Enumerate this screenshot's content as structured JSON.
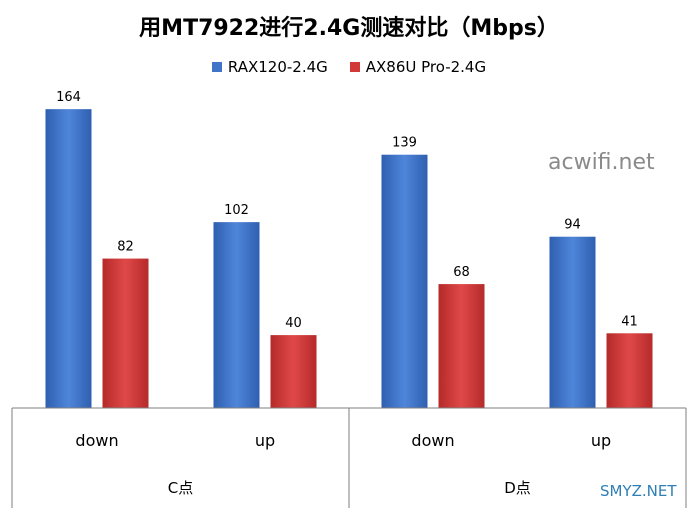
{
  "chart_data": {
    "type": "bar",
    "title": "用MT7922进行2.4G测速对比（Mbps）",
    "groups": [
      {
        "label": "C点",
        "categories": [
          "down",
          "up"
        ]
      },
      {
        "label": "D点",
        "categories": [
          "down",
          "up"
        ]
      }
    ],
    "categories": [
      "down",
      "up",
      "down",
      "up"
    ],
    "series": [
      {
        "name": "RAX120-2.4G",
        "color": "#3f74c8",
        "values": [
          164,
          102,
          139,
          94
        ]
      },
      {
        "name": "AX86U Pro-2.4G",
        "color": "#d23a3a",
        "values": [
          82,
          40,
          68,
          41
        ]
      }
    ],
    "ylim": [
      0,
      180
    ],
    "grid": false,
    "legend_position": "top"
  },
  "watermarks": [
    "acwifi.net",
    "SMYZ.NET"
  ]
}
